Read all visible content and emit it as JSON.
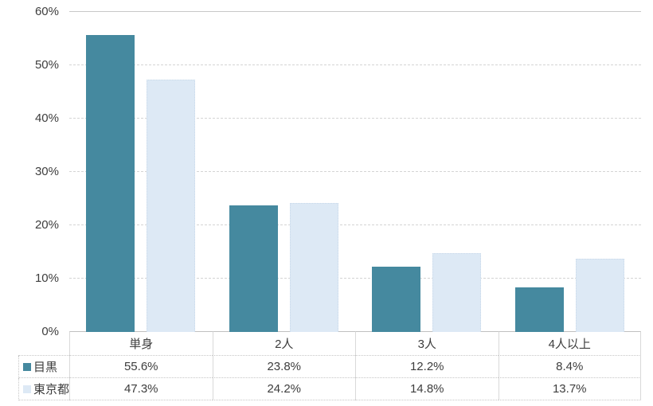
{
  "chart_data": {
    "type": "bar",
    "title": "",
    "xlabel": "",
    "ylabel": "",
    "categories": [
      "単身",
      "2人",
      "3人",
      "4人以上"
    ],
    "series": [
      {
        "name": "目黒",
        "values": [
          55.6,
          23.8,
          12.2,
          8.4
        ],
        "color": "#45899F"
      },
      {
        "name": "東京都",
        "values": [
          47.3,
          24.2,
          14.8,
          13.7
        ],
        "color": "#DDE9F5"
      }
    ],
    "ylim": [
      0,
      60
    ],
    "yticks": [
      0,
      10,
      20,
      30,
      40,
      50,
      60
    ],
    "ytick_labels": [
      "0%",
      "10%",
      "20%",
      "30%",
      "40%",
      "50%",
      "60%"
    ],
    "grid": true,
    "legend_position": "table-left"
  },
  "table": {
    "header": [
      "単身",
      "2人",
      "3人",
      "4人以上"
    ],
    "rows": [
      {
        "label": "目黒",
        "marker_color": "#45899F",
        "values": [
          "55.6%",
          "23.8%",
          "12.2%",
          "8.4%"
        ]
      },
      {
        "label": "東京都",
        "marker_color": "#DDE9F5",
        "values": [
          "47.3%",
          "24.2%",
          "14.8%",
          "13.7%"
        ]
      }
    ]
  },
  "colors": {
    "bar_dark": "#45899F",
    "bar_light": "#DDE9F5",
    "bar_light_border": "#C9D9EA",
    "gridline": "#D4D4D4",
    "axis_line": "#C0C0C0",
    "table_border": "#D9D9D9",
    "text": "#3D3D3D",
    "background": "#FFFFFF"
  }
}
